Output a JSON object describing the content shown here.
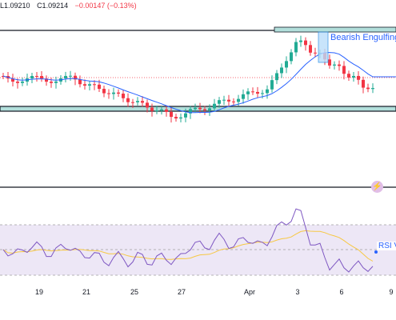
{
  "ohlc": {
    "low": "L1.09210",
    "close": "C1.09214",
    "change": "−0.00147 (−0.13%)"
  },
  "pattern_label": "Bearish Engulfing",
  "rsi_label": "RSI V",
  "x_axis_labels": [
    "19",
    "21",
    "25",
    "27",
    "Apr",
    "3",
    "6",
    "9"
  ],
  "colors": {
    "up": "#22ab94",
    "down": "#f23645",
    "ma": "#2962ff",
    "rsi": "#7e57c2",
    "rsi_ma": "#f7c843",
    "rsi_band": "#ede7f6",
    "level_line": "#131722"
  },
  "icons": [
    "alert-icon"
  ],
  "chart_data": [
    {
      "type": "candlestick",
      "title": "",
      "series": [
        {
          "name": "price",
          "description": "OHLC candles with horizontal support/resistance lines"
        }
      ],
      "moving_average": true
    },
    {
      "type": "line",
      "title": "",
      "series": [
        {
          "name": "RSI"
        },
        {
          "name": "RSI-based MA"
        }
      ],
      "ylim": [
        0,
        100
      ],
      "bands": [
        30,
        70
      ]
    }
  ]
}
